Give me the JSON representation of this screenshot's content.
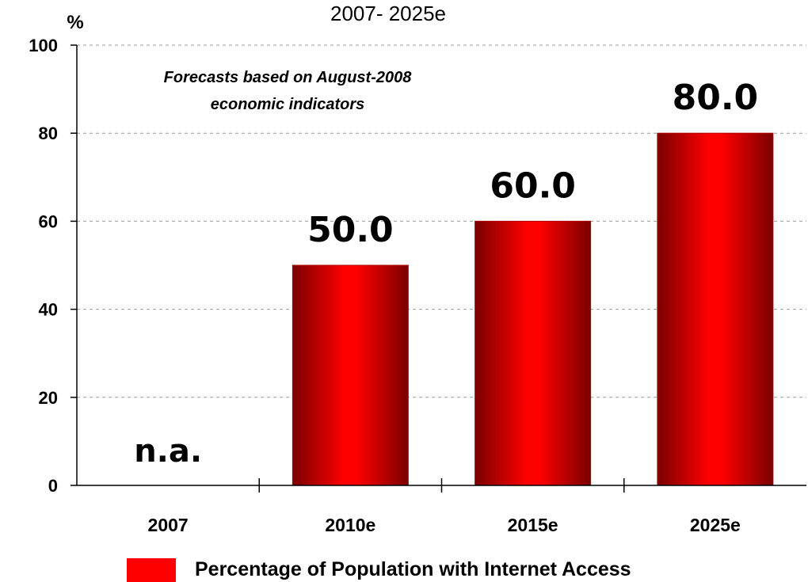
{
  "chart_data": {
    "type": "bar",
    "subtitle": "2007- 2025e",
    "ylabel": "%",
    "ylim": [
      0,
      100
    ],
    "yticks": [
      0,
      20,
      40,
      60,
      80,
      100
    ],
    "categories": [
      "2007",
      "2010e",
      "2015e",
      "2025e"
    ],
    "series": [
      {
        "name": "Percentage of Population with Internet Access",
        "values": [
          null,
          50.0,
          60.0,
          80.0
        ]
      }
    ],
    "data_labels": [
      "n.a.",
      "50.0",
      "60.0",
      "80.0"
    ],
    "annotation": [
      "Forecasts based on August-2008",
      "economic indicators"
    ],
    "grid": true,
    "legend": "bottom",
    "bar_color": "#ff0000",
    "bar_shade_color": "#7a0000"
  }
}
